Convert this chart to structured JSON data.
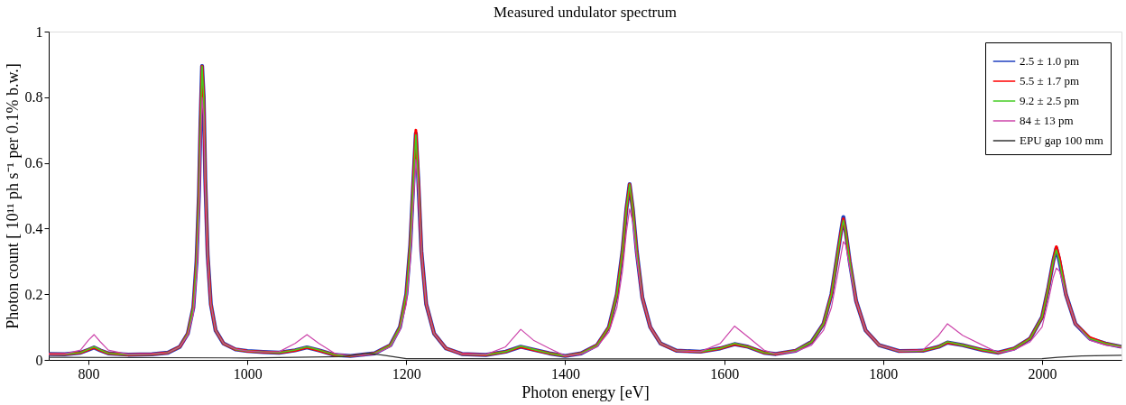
{
  "chart_data": {
    "type": "line",
    "title": "Measured undulator spectrum",
    "xlabel": "Photon energy [eV]",
    "ylabel": "Photon count [ 10¹¹ ph s⁻¹ per 0.1% b.w.]",
    "x": [
      750,
      770,
      790,
      800,
      807,
      815,
      825,
      850,
      880,
      900,
      915,
      925,
      932,
      936,
      939,
      941,
      943,
      945,
      947,
      950,
      954,
      960,
      970,
      985,
      1000,
      1020,
      1040,
      1060,
      1075,
      1090,
      1110,
      1130,
      1160,
      1180,
      1192,
      1200,
      1205,
      1209,
      1212,
      1215,
      1219,
      1225,
      1235,
      1250,
      1270,
      1300,
      1325,
      1344,
      1360,
      1380,
      1400,
      1420,
      1440,
      1455,
      1465,
      1472,
      1477,
      1481,
      1485,
      1490,
      1497,
      1507,
      1520,
      1540,
      1570,
      1595,
      1613,
      1630,
      1650,
      1665,
      1690,
      1710,
      1725,
      1735,
      1742,
      1747,
      1750,
      1753,
      1758,
      1766,
      1778,
      1795,
      1820,
      1850,
      1870,
      1881,
      1900,
      1925,
      1945,
      1965,
      1985,
      2000,
      2008,
      2014,
      2018,
      2022,
      2030,
      2042,
      2060,
      2080,
      2100
    ],
    "series": [
      {
        "name": "2.5 ± 1.0 pm",
        "color": "#1f3fbf",
        "values": [
          0.018,
          0.017,
          0.022,
          0.031,
          0.038,
          0.029,
          0.02,
          0.016,
          0.017,
          0.022,
          0.04,
          0.08,
          0.16,
          0.3,
          0.5,
          0.72,
          0.895,
          0.8,
          0.55,
          0.32,
          0.17,
          0.09,
          0.05,
          0.032,
          0.027,
          0.024,
          0.022,
          0.029,
          0.038,
          0.029,
          0.015,
          0.012,
          0.02,
          0.045,
          0.1,
          0.2,
          0.35,
          0.55,
          0.69,
          0.55,
          0.33,
          0.17,
          0.08,
          0.035,
          0.018,
          0.015,
          0.025,
          0.04,
          0.031,
          0.02,
          0.012,
          0.02,
          0.045,
          0.1,
          0.2,
          0.33,
          0.46,
          0.535,
          0.46,
          0.33,
          0.19,
          0.1,
          0.05,
          0.028,
          0.025,
          0.035,
          0.048,
          0.04,
          0.022,
          0.018,
          0.028,
          0.055,
          0.11,
          0.2,
          0.31,
          0.39,
          0.435,
          0.39,
          0.3,
          0.18,
          0.09,
          0.045,
          0.027,
          0.028,
          0.04,
          0.053,
          0.045,
          0.03,
          0.022,
          0.035,
          0.065,
          0.13,
          0.22,
          0.3,
          0.34,
          0.3,
          0.2,
          0.11,
          0.065,
          0.05,
          0.04
        ]
      },
      {
        "name": "5.5 ± 1.7 pm",
        "color": "#ff0000",
        "values": [
          0.018,
          0.017,
          0.022,
          0.031,
          0.038,
          0.029,
          0.02,
          0.016,
          0.017,
          0.022,
          0.04,
          0.08,
          0.16,
          0.3,
          0.5,
          0.72,
          0.895,
          0.8,
          0.55,
          0.32,
          0.17,
          0.09,
          0.05,
          0.032,
          0.027,
          0.024,
          0.022,
          0.029,
          0.038,
          0.029,
          0.015,
          0.012,
          0.02,
          0.045,
          0.1,
          0.2,
          0.35,
          0.55,
          0.7,
          0.56,
          0.33,
          0.17,
          0.08,
          0.035,
          0.018,
          0.015,
          0.025,
          0.04,
          0.031,
          0.02,
          0.012,
          0.02,
          0.045,
          0.1,
          0.2,
          0.33,
          0.46,
          0.535,
          0.46,
          0.33,
          0.19,
          0.1,
          0.05,
          0.028,
          0.025,
          0.035,
          0.048,
          0.04,
          0.022,
          0.018,
          0.028,
          0.055,
          0.11,
          0.2,
          0.31,
          0.39,
          0.43,
          0.39,
          0.3,
          0.18,
          0.09,
          0.045,
          0.027,
          0.028,
          0.04,
          0.053,
          0.045,
          0.03,
          0.022,
          0.035,
          0.065,
          0.13,
          0.22,
          0.3,
          0.345,
          0.31,
          0.2,
          0.11,
          0.068,
          0.05,
          0.04
        ]
      },
      {
        "name": "9.2 ± 2.5 pm",
        "color": "#44cc22",
        "values": [
          0.018,
          0.017,
          0.022,
          0.032,
          0.04,
          0.03,
          0.02,
          0.016,
          0.017,
          0.022,
          0.04,
          0.08,
          0.16,
          0.3,
          0.5,
          0.72,
          0.895,
          0.8,
          0.55,
          0.32,
          0.17,
          0.09,
          0.05,
          0.032,
          0.027,
          0.024,
          0.022,
          0.03,
          0.04,
          0.03,
          0.015,
          0.012,
          0.02,
          0.045,
          0.1,
          0.2,
          0.35,
          0.55,
          0.685,
          0.55,
          0.33,
          0.17,
          0.08,
          0.035,
          0.018,
          0.015,
          0.025,
          0.042,
          0.032,
          0.02,
          0.012,
          0.02,
          0.045,
          0.1,
          0.2,
          0.33,
          0.46,
          0.535,
          0.46,
          0.33,
          0.19,
          0.1,
          0.05,
          0.028,
          0.025,
          0.035,
          0.05,
          0.04,
          0.022,
          0.018,
          0.028,
          0.055,
          0.11,
          0.2,
          0.31,
          0.39,
          0.425,
          0.39,
          0.3,
          0.18,
          0.09,
          0.045,
          0.027,
          0.028,
          0.04,
          0.055,
          0.045,
          0.03,
          0.022,
          0.035,
          0.065,
          0.13,
          0.22,
          0.3,
          0.335,
          0.3,
          0.2,
          0.11,
          0.065,
          0.05,
          0.04
        ]
      },
      {
        "name": "84 ± 13 pm",
        "color": "#cc44aa",
        "values": [
          0.018,
          0.018,
          0.03,
          0.06,
          0.077,
          0.055,
          0.03,
          0.017,
          0.018,
          0.022,
          0.04,
          0.075,
          0.14,
          0.25,
          0.42,
          0.62,
          0.8,
          0.74,
          0.52,
          0.31,
          0.17,
          0.09,
          0.05,
          0.033,
          0.027,
          0.024,
          0.025,
          0.05,
          0.077,
          0.05,
          0.02,
          0.012,
          0.018,
          0.04,
          0.09,
          0.17,
          0.3,
          0.48,
          0.61,
          0.52,
          0.33,
          0.17,
          0.08,
          0.035,
          0.018,
          0.016,
          0.04,
          0.093,
          0.06,
          0.035,
          0.012,
          0.018,
          0.04,
          0.085,
          0.16,
          0.27,
          0.39,
          0.46,
          0.42,
          0.31,
          0.19,
          0.1,
          0.05,
          0.028,
          0.025,
          0.05,
          0.103,
          0.07,
          0.03,
          0.018,
          0.025,
          0.045,
          0.09,
          0.16,
          0.25,
          0.32,
          0.36,
          0.35,
          0.28,
          0.18,
          0.09,
          0.045,
          0.027,
          0.03,
          0.075,
          0.11,
          0.075,
          0.045,
          0.022,
          0.03,
          0.055,
          0.1,
          0.18,
          0.25,
          0.28,
          0.27,
          0.2,
          0.11,
          0.06,
          0.045,
          0.038
        ]
      },
      {
        "name": "EPU gap 100 mm",
        "color": "#333333",
        "x": [
          750,
          1000,
          1120,
          1150,
          1170,
          1200,
          1400,
          1600,
          1800,
          2000,
          2020,
          2050,
          2100
        ],
        "values": [
          0.008,
          0.006,
          0.01,
          0.02,
          0.015,
          0.004,
          0.003,
          0.003,
          0.003,
          0.004,
          0.008,
          0.012,
          0.014
        ]
      }
    ],
    "xlim": [
      750,
      2100
    ],
    "xticks": [
      800,
      1000,
      1200,
      1400,
      1600,
      1800,
      2000
    ],
    "ylim": [
      0,
      1
    ],
    "yticks": [
      0,
      0.2,
      0.4,
      0.6,
      0.8,
      1
    ],
    "legend": "top right",
    "grid": false,
    "marker": "none",
    "line_style": "solid"
  }
}
